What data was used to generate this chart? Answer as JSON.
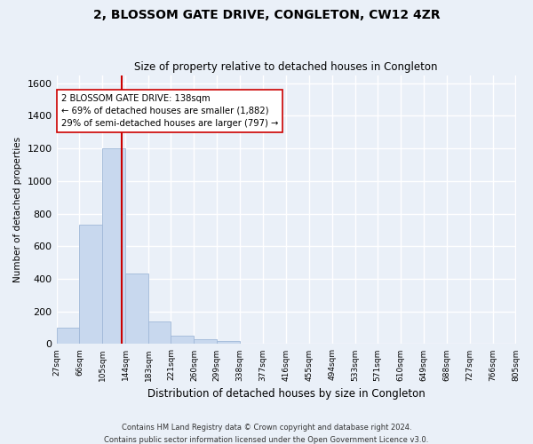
{
  "title": "2, BLOSSOM GATE DRIVE, CONGLETON, CW12 4ZR",
  "subtitle": "Size of property relative to detached houses in Congleton",
  "xlabel": "Distribution of detached houses by size in Congleton",
  "ylabel": "Number of detached properties",
  "bar_heights": [
    100,
    730,
    1200,
    430,
    140,
    50,
    30,
    20,
    0,
    0,
    0,
    0,
    0,
    0,
    0,
    0,
    0,
    0,
    0,
    0
  ],
  "bin_edges": [
    27,
    66,
    105,
    144,
    183,
    221,
    260,
    299,
    338,
    377,
    416,
    455,
    494,
    533,
    571,
    610,
    649,
    688,
    727,
    766,
    805
  ],
  "bar_labels": [
    "27sqm",
    "66sqm",
    "105sqm",
    "144sqm",
    "183sqm",
    "221sqm",
    "260sqm",
    "299sqm",
    "338sqm",
    "377sqm",
    "416sqm",
    "455sqm",
    "494sqm",
    "533sqm",
    "571sqm",
    "610sqm",
    "649sqm",
    "688sqm",
    "727sqm",
    "766sqm",
    "805sqm"
  ],
  "bar_color": "#c8d8ee",
  "bar_edge_color": "#a0b8d8",
  "vline_color": "#cc0000",
  "annotation_line1": "2 BLOSSOM GATE DRIVE: 138sqm",
  "annotation_line2": "← 69% of detached houses are smaller (1,882)",
  "annotation_line3": "29% of semi-detached houses are larger (797) →",
  "annotation_box_color": "#ffffff",
  "annotation_box_edge": "#cc0000",
  "ylim": [
    0,
    1650
  ],
  "yticks": [
    0,
    200,
    400,
    600,
    800,
    1000,
    1200,
    1400,
    1600
  ],
  "footnote1": "Contains HM Land Registry data © Crown copyright and database right 2024.",
  "footnote2": "Contains public sector information licensed under the Open Government Licence v3.0.",
  "background_color": "#eaf0f8",
  "plot_bg_color": "#eaf0f8",
  "grid_color": "#ffffff",
  "vline_x_sqm": 138
}
